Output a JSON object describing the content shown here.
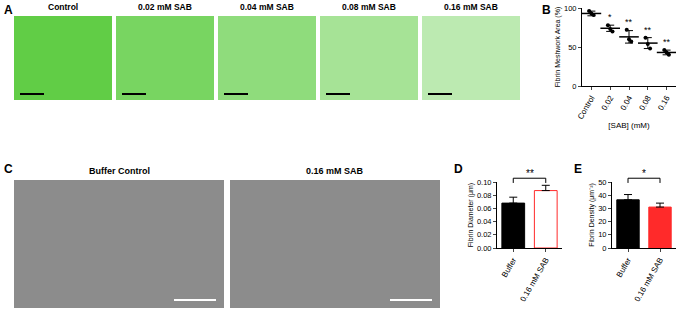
{
  "image_panels": [
    {
      "label": "A",
      "captions": [
        "Control",
        "0.02 mM SAB",
        "0.04 mM SAB",
        "0.08 mM SAB",
        "0.16 mM SAB"
      ]
    },
    {
      "label": "C",
      "captions": [
        "Buffer Control",
        "0.16 mM SAB"
      ]
    }
  ],
  "chart_data": [
    {
      "type": "scatter",
      "title": "B",
      "categories": [
        "Control",
        "0.02",
        "0.04",
        "0.08",
        "0.16"
      ],
      "points": [
        [
          96,
          93,
          91
        ],
        [
          78,
          73,
          70
        ],
        [
          72,
          60,
          57
        ],
        [
          62,
          54,
          48
        ],
        [
          46,
          43,
          40
        ]
      ],
      "values": [
        93,
        74,
        63,
        55,
        43
      ],
      "error": [
        3,
        4,
        8,
        7,
        3
      ],
      "annotations": [
        {
          "category": "0.02",
          "text": "*"
        },
        {
          "category": "0.04",
          "text": "**"
        },
        {
          "category": "0.08",
          "text": "**"
        },
        {
          "category": "0.16",
          "text": "**"
        }
      ],
      "xlabel": "[SAB] (mM)",
      "ylabel": "Fibrin Meshwork Area (%)",
      "ylim": [
        0,
        100
      ],
      "yticks": [
        0,
        50,
        100
      ],
      "color": "#000000"
    },
    {
      "type": "bar",
      "title": "D",
      "categories": [
        "Buffer",
        "0.16 mM SAB"
      ],
      "values": [
        0.068,
        0.087
      ],
      "error": [
        0.009,
        0.008
      ],
      "colors": [
        "#000000",
        "#ff2a2a"
      ],
      "annotations": [
        {
          "between": [
            "Buffer",
            "0.16 mM SAB"
          ],
          "text": "**"
        }
      ],
      "ylabel": "Fibrin Diameter (μm)",
      "ylim": [
        0,
        0.1
      ],
      "yticks": [
        {
          "value": 0,
          "label": "0.00"
        },
        {
          "value": 0.02,
          "label": "0.02"
        },
        {
          "value": 0.04,
          "label": "0.04"
        },
        {
          "value": 0.06,
          "label": "0.06"
        },
        {
          "value": 0.08,
          "label": "0.08"
        },
        {
          "value": 0.1,
          "label": "0.10"
        }
      ]
    },
    {
      "type": "bar",
      "title": "E",
      "categories": [
        "Buffer",
        "0.16 mM SAB"
      ],
      "values": [
        36.5,
        31
      ],
      "error": [
        4,
        3
      ],
      "colors": [
        "#000000",
        "#ff2a2a"
      ],
      "annotations": [
        {
          "between": [
            "Buffer",
            "0.16 mM SAB"
          ],
          "text": "*"
        }
      ],
      "ylabel": "Fibrin Density (μm⁻²)",
      "ylim": [
        0,
        50
      ],
      "yticks": [
        0,
        10,
        20,
        30,
        40,
        50
      ]
    }
  ]
}
